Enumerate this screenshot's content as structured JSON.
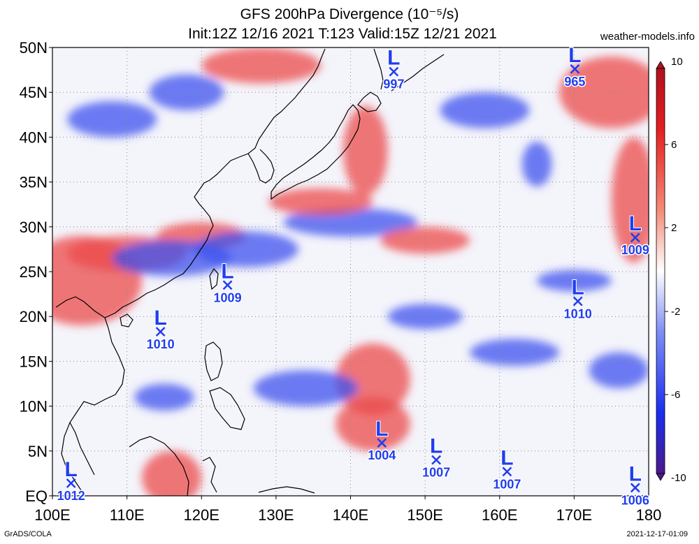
{
  "header": {
    "title_line1": "GFS 200hPa Divergence (10⁻⁵/s)",
    "title_line2": "Init:12Z 12/16 2021 T:123 Valid:15Z 12/21 2021",
    "site": "weather-models.info"
  },
  "footer": {
    "credit": "GrADS/COLA",
    "timestamp": "2021-12-17-01:09"
  },
  "axes": {
    "lat_labels": [
      "50N",
      "45N",
      "40N",
      "35N",
      "30N",
      "25N",
      "20N",
      "15N",
      "10N",
      "5N",
      "EQ"
    ],
    "lon_labels": [
      "100E",
      "110E",
      "120E",
      "130E",
      "140E",
      "150E",
      "160E",
      "170E",
      "180"
    ]
  },
  "colorbar": {
    "ticks": [
      "10",
      "6",
      "2",
      "-2",
      "-6",
      "-10"
    ],
    "colors": [
      "#b01020",
      "#e51f1f",
      "#f58a78",
      "#ffffff",
      "#7f8ef5",
      "#1a2ef0",
      "#4a1a8c"
    ]
  },
  "lows": [
    {
      "lon": 145.8,
      "lat": 47.3,
      "pressure": "997"
    },
    {
      "lon": 170.1,
      "lat": 47.6,
      "pressure": "965"
    },
    {
      "lon": 178.2,
      "lat": 28.8,
      "pressure": "1009"
    },
    {
      "lon": 123.5,
      "lat": 23.5,
      "pressure": "1009"
    },
    {
      "lon": 114.5,
      "lat": 18.3,
      "pressure": "1010"
    },
    {
      "lon": 170.5,
      "lat": 21.7,
      "pressure": "1010"
    },
    {
      "lon": 144.2,
      "lat": 5.9,
      "pressure": "1004"
    },
    {
      "lon": 151.5,
      "lat": 4.0,
      "pressure": "1007"
    },
    {
      "lon": 161.0,
      "lat": 2.7,
      "pressure": "1007"
    },
    {
      "lon": 178.2,
      "lat": 0.9,
      "pressure": "1006"
    },
    {
      "lon": 102.5,
      "lat": 1.4,
      "pressure": "1012"
    }
  ],
  "field_blobs": [
    {
      "lon": 104,
      "lat": 24,
      "rx": 8,
      "ry": 5,
      "kind": "pos"
    },
    {
      "lon": 110,
      "lat": 27,
      "rx": 8,
      "ry": 2,
      "kind": "pos"
    },
    {
      "lon": 120,
      "lat": 29,
      "rx": 6,
      "ry": 1.5,
      "kind": "pos"
    },
    {
      "lon": 116,
      "lat": 26.5,
      "rx": 8,
      "ry": 2,
      "kind": "neg"
    },
    {
      "lon": 126,
      "lat": 27.5,
      "rx": 7,
      "ry": 2,
      "kind": "neg"
    },
    {
      "lon": 140,
      "lat": 30.5,
      "rx": 9,
      "ry": 1.6,
      "kind": "neg"
    },
    {
      "lon": 136,
      "lat": 32.8,
      "rx": 7,
      "ry": 1.5,
      "kind": "pos"
    },
    {
      "lon": 142,
      "lat": 38.5,
      "rx": 3,
      "ry": 5,
      "kind": "pos"
    },
    {
      "lon": 143,
      "lat": 13,
      "rx": 5,
      "ry": 4,
      "kind": "pos"
    },
    {
      "lon": 143,
      "lat": 8,
      "rx": 5,
      "ry": 3,
      "kind": "pos"
    },
    {
      "lon": 150,
      "lat": 28.5,
      "rx": 6,
      "ry": 1.5,
      "kind": "pos"
    },
    {
      "lon": 165,
      "lat": 37,
      "rx": 2,
      "ry": 2.5,
      "kind": "neg"
    },
    {
      "lon": 175,
      "lat": 45,
      "rx": 7,
      "ry": 4,
      "kind": "pos"
    },
    {
      "lon": 178,
      "lat": 33,
      "rx": 3,
      "ry": 7,
      "kind": "pos"
    },
    {
      "lon": 108,
      "lat": 42,
      "rx": 6,
      "ry": 2,
      "kind": "neg"
    },
    {
      "lon": 118,
      "lat": 45,
      "rx": 5,
      "ry": 2,
      "kind": "neg"
    },
    {
      "lon": 134,
      "lat": 12,
      "rx": 7,
      "ry": 2,
      "kind": "neg"
    },
    {
      "lon": 115,
      "lat": 11,
      "rx": 4,
      "ry": 1.5,
      "kind": "neg"
    },
    {
      "lon": 162,
      "lat": 16,
      "rx": 6,
      "ry": 1.5,
      "kind": "neg"
    },
    {
      "lon": 170,
      "lat": 24,
      "rx": 5,
      "ry": 1.2,
      "kind": "neg"
    },
    {
      "lon": 116,
      "lat": 2,
      "rx": 4,
      "ry": 3,
      "kind": "pos"
    },
    {
      "lon": 176,
      "lat": 14,
      "rx": 4,
      "ry": 2,
      "kind": "neg"
    },
    {
      "lon": 150,
      "lat": 20,
      "rx": 5,
      "ry": 1.4,
      "kind": "neg"
    },
    {
      "lon": 128,
      "lat": 48,
      "rx": 8,
      "ry": 2,
      "kind": "pos"
    },
    {
      "lon": 158,
      "lat": 43,
      "rx": 6,
      "ry": 2,
      "kind": "neg"
    }
  ]
}
